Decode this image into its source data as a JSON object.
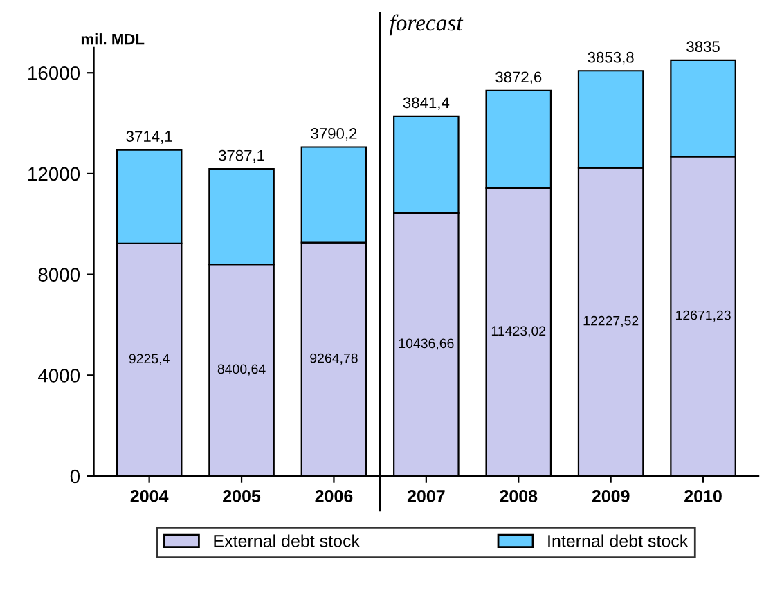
{
  "chart_data": {
    "type": "bar",
    "stacked": true,
    "ylabel": "mil. MDL",
    "categories": [
      "2004",
      "2005",
      "2006",
      "2007",
      "2008",
      "2009",
      "2010"
    ],
    "series": [
      {
        "name": "External debt stock",
        "color": "#c9c9ee",
        "values": [
          9225.4,
          8400.64,
          9264.78,
          10436.66,
          11423.02,
          12227.52,
          12671.23
        ],
        "value_labels": [
          "9225,4",
          "8400,64",
          "9264,78",
          "10436,66",
          "11423,02",
          "12227,52",
          "12671,23"
        ]
      },
      {
        "name": "Internal debt stock",
        "color": "#66ccff",
        "values": [
          3714.1,
          3787.1,
          3790.2,
          3841.4,
          3872.6,
          3853.8,
          3835
        ],
        "value_labels": [
          "3714,1",
          "3787,1",
          "3790,2",
          "3841,4",
          "3872,6",
          "3853,8",
          "3835"
        ]
      }
    ],
    "ylim": [
      0,
      17000
    ],
    "yticks": [
      0,
      4000,
      8000,
      12000,
      16000
    ],
    "annotations": [
      "forecast"
    ],
    "grid": false,
    "legend": "bottom"
  }
}
